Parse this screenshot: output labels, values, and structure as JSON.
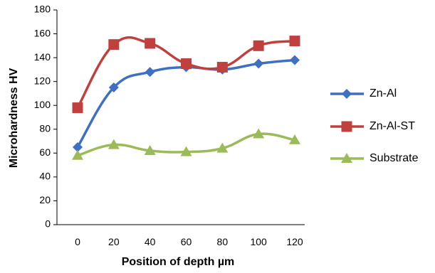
{
  "chart_data": {
    "type": "line",
    "title": "",
    "xlabel": "Position of depth µm",
    "ylabel": "Microhardness HV",
    "x": [
      0,
      20,
      40,
      60,
      80,
      100,
      120
    ],
    "xlim": [
      0,
      120
    ],
    "ylim": [
      0,
      180
    ],
    "x_ticks": [
      "0",
      "20",
      "40",
      "60",
      "80",
      "100",
      "120"
    ],
    "y_ticks": [
      "0",
      "20",
      "40",
      "60",
      "80",
      "100",
      "120",
      "140",
      "160",
      "180"
    ],
    "grid": false,
    "legend_position": "right",
    "series": [
      {
        "name": "Zn-Al",
        "values": [
          65,
          115,
          128,
          132,
          130,
          135,
          138
        ],
        "color": "#3e6fc0",
        "marker": "diamond"
      },
      {
        "name": "Zn-Al-ST",
        "values": [
          98,
          151,
          152,
          135,
          132,
          150,
          154
        ],
        "color": "#c0403e",
        "marker": "square"
      },
      {
        "name": "Substrate",
        "values": [
          58,
          67,
          62,
          61,
          64,
          76,
          71
        ],
        "color": "#9bbb59",
        "marker": "triangle"
      }
    ]
  }
}
